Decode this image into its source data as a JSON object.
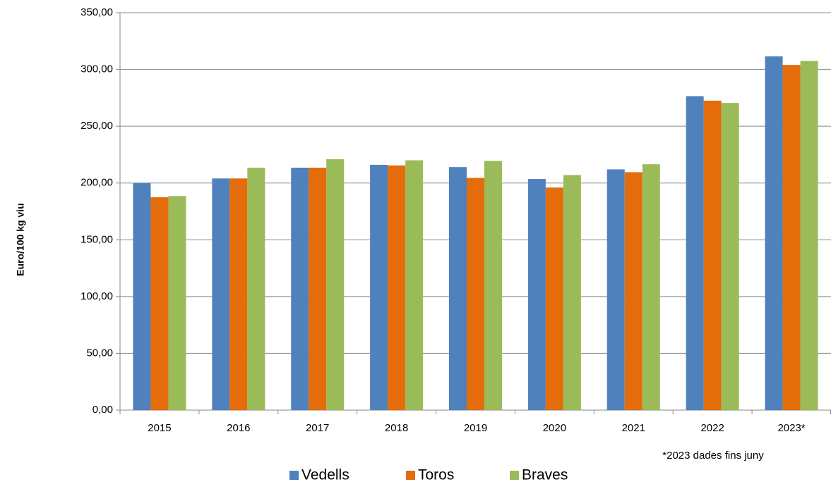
{
  "chart_data": {
    "type": "bar",
    "y_label": "Euro/100 kg viu",
    "note": "*2023 dades fins juny",
    "categories": [
      "2015",
      "2016",
      "2017",
      "2018",
      "2019",
      "2020",
      "2021",
      "2022",
      "2023*"
    ],
    "series": [
      {
        "name": "Vedells",
        "color": "#4f81bd",
        "values": [
          200,
          204,
          213.5,
          216,
          214,
          203.5,
          212,
          276.5,
          311.5
        ]
      },
      {
        "name": "Toros",
        "color": "#e46c0a",
        "values": [
          187.5,
          204,
          213.5,
          215.5,
          204.5,
          196,
          209.5,
          272.5,
          304
        ]
      },
      {
        "name": "Braves",
        "color": "#9bbb59",
        "values": [
          188.5,
          213.5,
          221,
          220,
          219.5,
          207,
          216.5,
          270.5,
          307.5
        ]
      }
    ],
    "ylim": [
      0,
      350
    ],
    "yticks": [
      {
        "value": 0,
        "label": "0,00"
      },
      {
        "value": 50,
        "label": "50,00"
      },
      {
        "value": 100,
        "label": "100,00"
      },
      {
        "value": 150,
        "label": "150,00"
      },
      {
        "value": 200,
        "label": "200,00"
      },
      {
        "value": 250,
        "label": "250,00"
      },
      {
        "value": 300,
        "label": "300,00"
      },
      {
        "value": 350,
        "label": "350,00"
      }
    ],
    "grid": true
  }
}
